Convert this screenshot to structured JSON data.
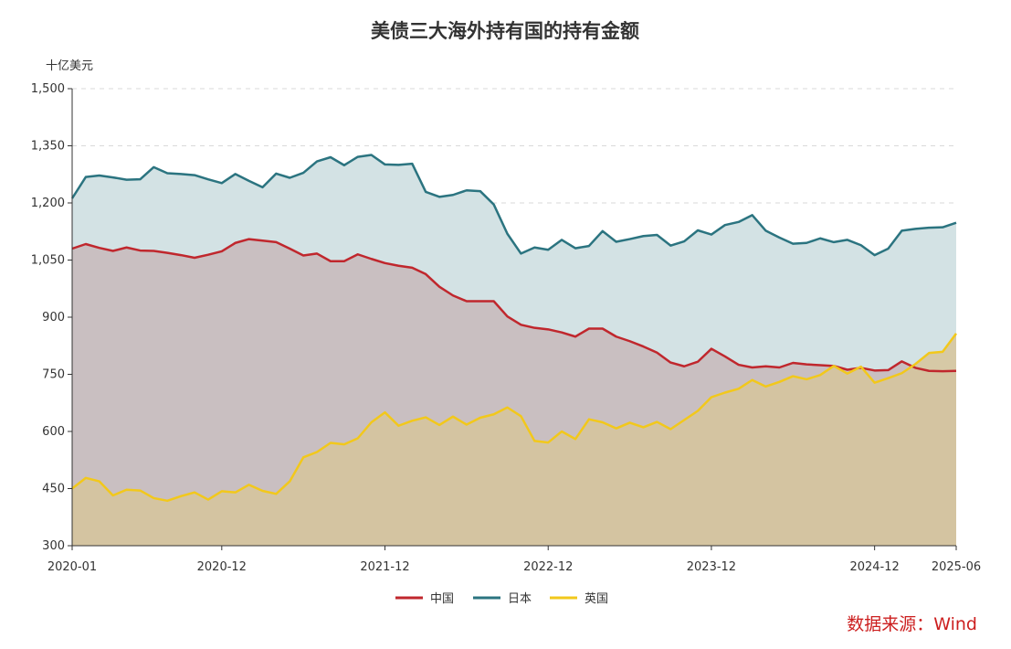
{
  "chart_data": {
    "type": "area",
    "title": "美债三大海外持有国的持有金额",
    "ylabel": "十亿美元",
    "source": "数据来源：Wind",
    "ylim": [
      300,
      1500
    ],
    "yticks": [
      "300",
      "450",
      "600",
      "750",
      "900",
      "1,050",
      "1,200",
      "1,350",
      "1,500"
    ],
    "ytick_values": [
      300,
      450,
      600,
      750,
      900,
      1050,
      1200,
      1350,
      1500
    ],
    "xticks": [
      {
        "label": "2020-01",
        "index": 0
      },
      {
        "label": "2020-12",
        "index": 11
      },
      {
        "label": "2021-12",
        "index": 23
      },
      {
        "label": "2022-12",
        "index": 35
      },
      {
        "label": "2023-12",
        "index": 47
      },
      {
        "label": "2024-12",
        "index": 59
      },
      {
        "label": "2025-06",
        "index": 65
      }
    ],
    "x_start": "2020-01",
    "x_end": "2025-06",
    "grid": "horizontal dashed",
    "legend_position": "bottom-center",
    "series": [
      {
        "name": "中国",
        "color": "#c0272d",
        "fill": "#c9bfc1",
        "values": [
          1080,
          1092,
          1082,
          1074,
          1083,
          1075,
          1074,
          1069,
          1063,
          1056,
          1064,
          1073,
          1095,
          1105,
          1101,
          1097,
          1080,
          1062,
          1067,
          1047,
          1047,
          1065,
          1053,
          1042,
          1035,
          1030,
          1013,
          980,
          957,
          942,
          942,
          942,
          902,
          880,
          872,
          868,
          860,
          849,
          870,
          870,
          849,
          837,
          823,
          807,
          781,
          771,
          783,
          817,
          797,
          775,
          768,
          771,
          768,
          780,
          776,
          774,
          772,
          762,
          767,
          760,
          761,
          784,
          767,
          759,
          758,
          759
        ]
      },
      {
        "name": "日本",
        "color": "#2b7480",
        "fill": "#d3e2e4",
        "values": [
          1212,
          1268,
          1272,
          1267,
          1261,
          1262,
          1294,
          1278,
          1276,
          1273,
          1262,
          1252,
          1276,
          1258,
          1241,
          1277,
          1266,
          1279,
          1309,
          1320,
          1299,
          1321,
          1326,
          1301,
          1300,
          1303,
          1229,
          1216,
          1221,
          1233,
          1231,
          1196,
          1119,
          1067,
          1083,
          1077,
          1103,
          1081,
          1087,
          1126,
          1098,
          1105,
          1113,
          1116,
          1088,
          1099,
          1128,
          1117,
          1142,
          1150,
          1168,
          1127,
          1109,
          1093,
          1095,
          1107,
          1097,
          1103,
          1089,
          1063,
          1080,
          1127,
          1132,
          1135,
          1136,
          1148
        ]
      },
      {
        "name": "英国",
        "color": "#f2c81b",
        "fill": "#d6c49b",
        "values": [
          450,
          478,
          469,
          432,
          447,
          445,
          425,
          418,
          430,
          440,
          421,
          443,
          440,
          460,
          444,
          436,
          469,
          532,
          546,
          570,
          566,
          582,
          624,
          650,
          615,
          628,
          637,
          617,
          639,
          618,
          636,
          645,
          663,
          640,
          575,
          571,
          600,
          580,
          632,
          624,
          608,
          623,
          611,
          625,
          606,
          630,
          654,
          690,
          702,
          712,
          735,
          718,
          730,
          745,
          737,
          748,
          772,
          752,
          770,
          728,
          740,
          753,
          777,
          806,
          809,
          857
        ]
      }
    ]
  }
}
